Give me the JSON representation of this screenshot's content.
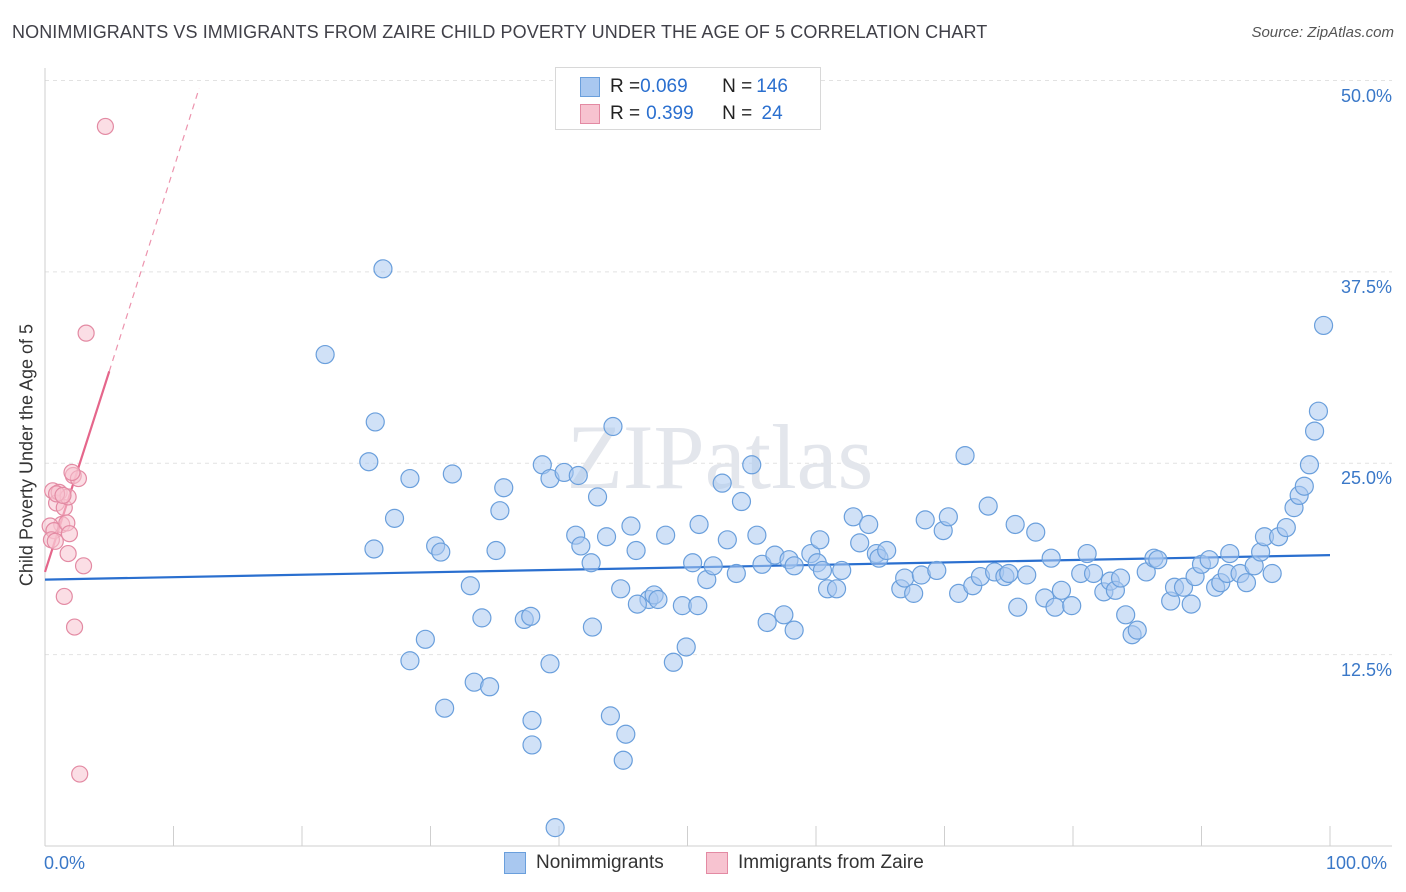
{
  "title": "NONIMMIGRANTS VS IMMIGRANTS FROM ZAIRE CHILD POVERTY UNDER THE AGE OF 5 CORRELATION CHART",
  "source": "Source: ZipAtlas.com",
  "watermark": "ZIPatlas",
  "legend": {
    "rows": [
      {
        "r_label": "R = ",
        "r_value": "0.069",
        "n_label": "N = ",
        "n_value": "146",
        "color": "#a9c8f0",
        "border": "#6a9fdc"
      },
      {
        "r_label": "R = ",
        "r_value": "0.399",
        "n_label": "N = ",
        "n_value": " 24",
        "color": "#f7c3d0",
        "border": "#e38aa3"
      }
    ]
  },
  "bottom_legend": [
    {
      "label": "Nonimmigrants",
      "color": "#a9c8f0",
      "border": "#6a9fdc"
    },
    {
      "label": "Immigrants from Zaire",
      "color": "#f7c3d0",
      "border": "#e38aa3"
    }
  ],
  "chart_data": {
    "type": "scatter",
    "title": "NONIMMIGRANTS VS IMMIGRANTS FROM ZAIRE CHILD POVERTY UNDER THE AGE OF 5 CORRELATION CHART",
    "xlabel": "",
    "ylabel": "Child Poverty Under the Age of 5",
    "x_tick_labels": [
      "0.0%",
      "100.0%"
    ],
    "y_tick_labels": [
      "12.5%",
      "25.0%",
      "37.5%",
      "50.0%"
    ],
    "xlim": [
      0,
      100
    ],
    "ylim": [
      0,
      51.5
    ],
    "grid": true,
    "series": [
      {
        "name": "Nonimmigrants",
        "color": "#a9c8f0",
        "stroke": "#6a9fdc",
        "trend": {
          "x0": 0,
          "y0": 17.4,
          "x1": 100,
          "y1": 19.0,
          "color": "#2a6fcf"
        },
        "points": [
          [
            21.8,
            32.1
          ],
          [
            26.3,
            37.7
          ],
          [
            25.7,
            27.7
          ],
          [
            25.2,
            25.1
          ],
          [
            27.2,
            21.4
          ],
          [
            25.6,
            19.4
          ],
          [
            28.4,
            12.1
          ],
          [
            29.6,
            13.5
          ],
          [
            28.4,
            24.0
          ],
          [
            30.4,
            19.6
          ],
          [
            31.1,
            9.0
          ],
          [
            30.8,
            19.2
          ],
          [
            31.7,
            24.3
          ],
          [
            33.1,
            17.0
          ],
          [
            33.4,
            10.7
          ],
          [
            34.0,
            14.9
          ],
          [
            34.6,
            10.4
          ],
          [
            35.4,
            21.9
          ],
          [
            35.7,
            23.4
          ],
          [
            35.1,
            19.3
          ],
          [
            37.3,
            14.8
          ],
          [
            37.9,
            8.2
          ],
          [
            37.9,
            6.6
          ],
          [
            38.7,
            24.9
          ],
          [
            39.3,
            11.9
          ],
          [
            39.3,
            24.0
          ],
          [
            40.4,
            24.4
          ],
          [
            41.5,
            24.2
          ],
          [
            41.3,
            20.3
          ],
          [
            41.7,
            19.6
          ],
          [
            39.7,
            1.2
          ],
          [
            42.6,
            14.3
          ],
          [
            42.5,
            18.5
          ],
          [
            43.0,
            22.8
          ],
          [
            43.7,
            20.2
          ],
          [
            44.2,
            27.4
          ],
          [
            44.0,
            8.5
          ],
          [
            44.8,
            16.8
          ],
          [
            45.2,
            7.3
          ],
          [
            45.0,
            5.6
          ],
          [
            45.6,
            20.9
          ],
          [
            46.0,
            19.3
          ],
          [
            47.0,
            16.1
          ],
          [
            47.4,
            16.4
          ],
          [
            47.7,
            16.1
          ],
          [
            48.3,
            20.3
          ],
          [
            48.9,
            12.0
          ],
          [
            49.6,
            15.7
          ],
          [
            49.9,
            13.0
          ],
          [
            50.8,
            15.7
          ],
          [
            50.9,
            21.0
          ],
          [
            51.5,
            17.4
          ],
          [
            52.0,
            18.3
          ],
          [
            52.7,
            23.7
          ],
          [
            53.1,
            20.0
          ],
          [
            53.8,
            17.8
          ],
          [
            54.2,
            22.5
          ],
          [
            55.0,
            24.9
          ],
          [
            55.4,
            20.3
          ],
          [
            55.8,
            18.4
          ],
          [
            56.2,
            14.6
          ],
          [
            56.8,
            19.0
          ],
          [
            57.5,
            15.1
          ],
          [
            57.9,
            18.7
          ],
          [
            58.3,
            18.3
          ],
          [
            58.3,
            14.1
          ],
          [
            59.6,
            19.1
          ],
          [
            60.1,
            18.5
          ],
          [
            60.5,
            18.0
          ],
          [
            60.9,
            16.8
          ],
          [
            61.6,
            16.8
          ],
          [
            62.0,
            18.0
          ],
          [
            62.9,
            21.5
          ],
          [
            63.4,
            19.8
          ],
          [
            64.1,
            21.0
          ],
          [
            64.7,
            19.1
          ],
          [
            64.9,
            18.8
          ],
          [
            65.5,
            19.3
          ],
          [
            66.6,
            16.8
          ],
          [
            66.9,
            17.5
          ],
          [
            67.6,
            16.5
          ],
          [
            68.2,
            17.7
          ],
          [
            68.5,
            21.3
          ],
          [
            69.4,
            18.0
          ],
          [
            69.9,
            20.6
          ],
          [
            70.3,
            21.5
          ],
          [
            71.1,
            16.5
          ],
          [
            71.6,
            25.5
          ],
          [
            72.2,
            17.0
          ],
          [
            72.8,
            17.6
          ],
          [
            73.4,
            22.2
          ],
          [
            73.9,
            17.9
          ],
          [
            74.7,
            17.6
          ],
          [
            75.0,
            17.8
          ],
          [
            75.5,
            21.0
          ],
          [
            75.7,
            15.6
          ],
          [
            76.4,
            17.7
          ],
          [
            77.1,
            20.5
          ],
          [
            77.8,
            16.2
          ],
          [
            78.3,
            18.8
          ],
          [
            78.6,
            15.6
          ],
          [
            79.1,
            16.7
          ],
          [
            79.9,
            15.7
          ],
          [
            80.6,
            17.8
          ],
          [
            81.1,
            19.1
          ],
          [
            81.6,
            17.8
          ],
          [
            82.4,
            16.6
          ],
          [
            82.9,
            17.3
          ],
          [
            83.3,
            16.7
          ],
          [
            83.7,
            17.5
          ],
          [
            84.1,
            15.1
          ],
          [
            84.6,
            13.8
          ],
          [
            85.0,
            14.1
          ],
          [
            85.7,
            17.9
          ],
          [
            86.3,
            18.8
          ],
          [
            86.6,
            18.7
          ],
          [
            87.6,
            16.0
          ],
          [
            87.9,
            16.9
          ],
          [
            88.6,
            16.9
          ],
          [
            89.2,
            15.8
          ],
          [
            89.5,
            17.6
          ],
          [
            90.0,
            18.4
          ],
          [
            90.6,
            18.7
          ],
          [
            91.1,
            16.9
          ],
          [
            91.5,
            17.2
          ],
          [
            92.0,
            17.8
          ],
          [
            92.2,
            19.1
          ],
          [
            93.0,
            17.8
          ],
          [
            93.5,
            17.2
          ],
          [
            94.1,
            18.3
          ],
          [
            94.6,
            19.2
          ],
          [
            94.9,
            20.2
          ],
          [
            95.5,
            17.8
          ],
          [
            96.0,
            20.2
          ],
          [
            96.6,
            20.8
          ],
          [
            97.2,
            22.1
          ],
          [
            97.6,
            22.9
          ],
          [
            98.0,
            23.5
          ],
          [
            98.4,
            24.9
          ],
          [
            98.8,
            27.1
          ],
          [
            99.1,
            28.4
          ],
          [
            99.5,
            34.0
          ],
          [
            60.3,
            20.0
          ],
          [
            50.4,
            18.5
          ],
          [
            37.8,
            15.0
          ],
          [
            46.1,
            15.8
          ]
        ]
      },
      {
        "name": "Immigrants from Zaire",
        "color": "#f7c3d0",
        "stroke": "#e38aa3",
        "trend": {
          "x0": 0,
          "y0": 17.9,
          "x1": 5.0,
          "y1": 31.0,
          "dash_to": {
            "x": 12.0,
            "y": 49.5
          },
          "color": "#e5668b"
        },
        "points": [
          [
            4.7,
            47.0
          ],
          [
            3.2,
            33.5
          ],
          [
            0.6,
            23.2
          ],
          [
            0.9,
            22.4
          ],
          [
            1.1,
            23.1
          ],
          [
            1.3,
            21.0
          ],
          [
            0.4,
            20.9
          ],
          [
            0.7,
            20.6
          ],
          [
            1.5,
            22.1
          ],
          [
            1.8,
            22.8
          ],
          [
            2.2,
            24.2
          ],
          [
            2.6,
            24.0
          ],
          [
            1.7,
            21.1
          ],
          [
            1.9,
            20.4
          ],
          [
            0.5,
            20.0
          ],
          [
            0.8,
            19.9
          ],
          [
            1.8,
            19.1
          ],
          [
            3.0,
            18.3
          ],
          [
            1.5,
            16.3
          ],
          [
            2.3,
            14.3
          ],
          [
            2.7,
            4.7
          ],
          [
            0.9,
            23.0
          ],
          [
            2.1,
            24.4
          ],
          [
            1.4,
            22.9
          ]
        ]
      }
    ]
  }
}
